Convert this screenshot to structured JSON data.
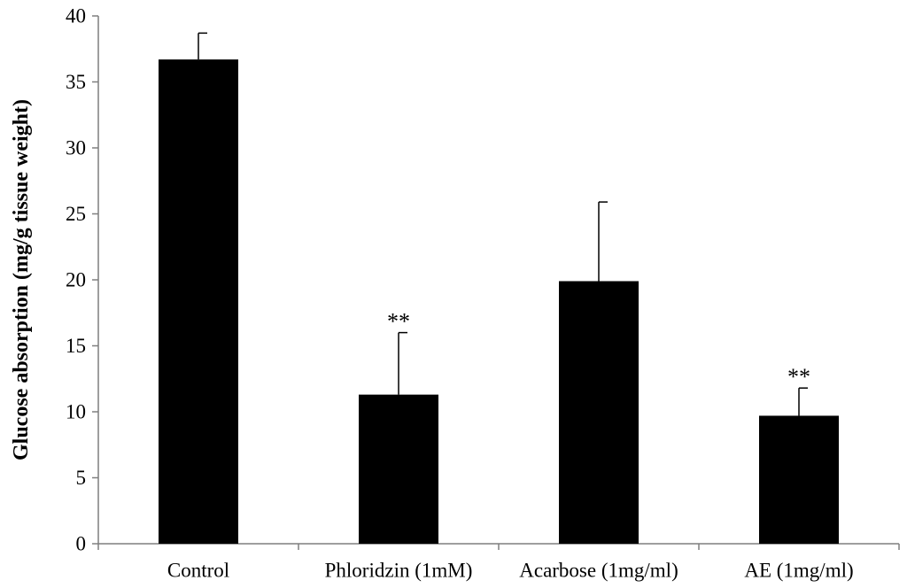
{
  "chart_data": {
    "type": "bar",
    "title": "",
    "xlabel": "",
    "ylabel": "Glucose absorption (mg/g tissue weight)",
    "categories": [
      "Control",
      "Phloridzin (1mM)",
      "Acarbose (1mg/ml)",
      "AE (1mg/ml)"
    ],
    "values": [
      36.7,
      11.3,
      19.9,
      9.7
    ],
    "errors": [
      2.0,
      4.7,
      6.0,
      2.1
    ],
    "significance": [
      "",
      "**",
      "",
      "**"
    ],
    "ylim": [
      0,
      40
    ],
    "yticks": [
      0,
      5,
      10,
      15,
      20,
      25,
      30,
      35,
      40
    ],
    "grid": false,
    "legend": "none",
    "colors": {
      "bar": "#000000",
      "axis": "#7f7f7f",
      "text": "#000000"
    }
  }
}
